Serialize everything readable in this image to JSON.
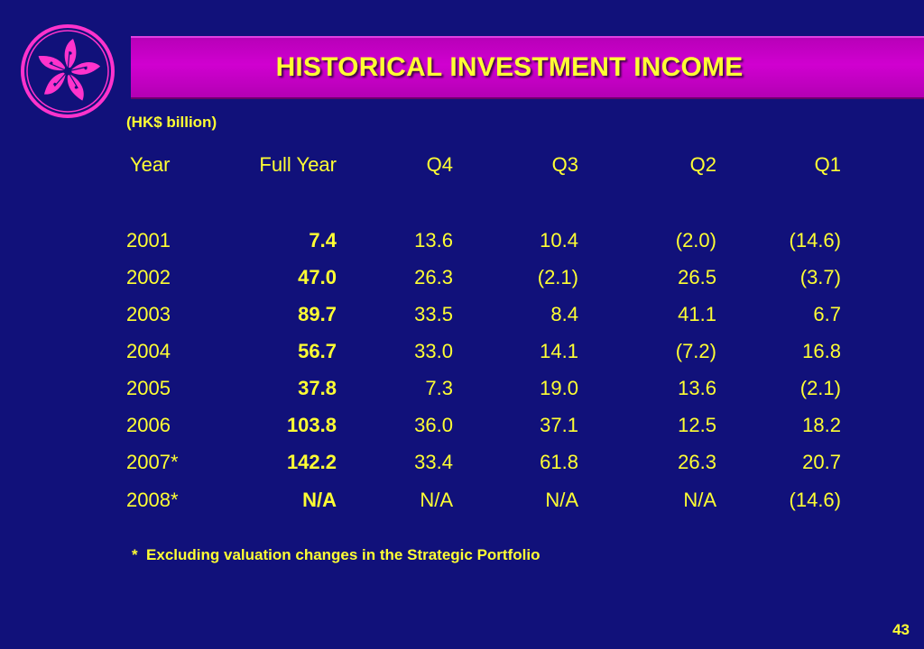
{
  "slide": {
    "title": "HISTORICAL INVESTMENT INCOME",
    "subtitle": "(HK$ billion)",
    "footnote": "*  Excluding valuation changes in the Strategic Portfolio",
    "page_number": "43",
    "logo_icon": "bauhinia-flower-icon",
    "colors": {
      "background": "#11117a",
      "title_bar": "#c800c8",
      "text": "#ffff33",
      "logo": "#ff33cc"
    }
  },
  "table": {
    "headers": [
      "Year",
      "Full Year",
      "Q4",
      "Q3",
      "Q2",
      "Q1"
    ],
    "rows": [
      [
        "2001",
        "7.4",
        "13.6",
        "10.4",
        "(2.0)",
        "(14.6)"
      ],
      [
        "2002",
        "47.0",
        "26.3",
        "(2.1)",
        "26.5",
        "(3.7)"
      ],
      [
        "2003",
        "89.7",
        "33.5",
        "8.4",
        "41.1",
        "6.7"
      ],
      [
        "2004",
        "56.7",
        "33.0",
        "14.1",
        "(7.2)",
        "16.8"
      ],
      [
        "2005",
        "37.8",
        "7.3",
        "19.0",
        "13.6",
        "(2.1)"
      ],
      [
        "2006",
        "103.8",
        "36.0",
        "37.1",
        "12.5",
        "18.2"
      ],
      [
        "2007*",
        "142.2",
        "33.4",
        "61.8",
        "26.3",
        "20.7"
      ],
      [
        "2008*",
        "N/A",
        "N/A",
        "N/A",
        "N/A",
        "(14.6)"
      ]
    ]
  }
}
